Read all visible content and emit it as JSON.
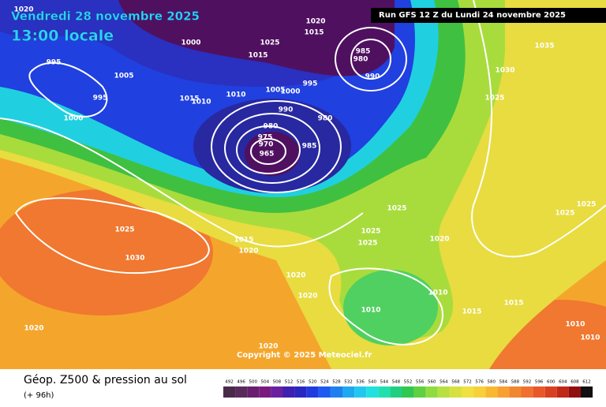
{
  "header": {
    "date": "Vendredi 28 novembre 2025",
    "time": "13:00 locale",
    "run": "Run GFS 12 Z du Lundi 24 novembre 2025"
  },
  "copyright": "Copyright © 2025 Meteociel.fr",
  "footer": {
    "title": "Géop. Z500 & pression au sol",
    "lead": "(+ 96h)"
  },
  "scale": {
    "values": [
      492,
      496,
      500,
      504,
      508,
      512,
      516,
      520,
      524,
      528,
      532,
      536,
      540,
      544,
      548,
      552,
      556,
      560,
      564,
      568,
      572,
      576,
      580,
      584,
      588,
      592,
      596,
      600,
      604,
      608,
      612
    ],
    "colors": [
      "#4a2a4a",
      "#5a2a5a",
      "#6a1e6e",
      "#7a1a80",
      "#6a20a0",
      "#4020b0",
      "#2828c0",
      "#1e3ce0",
      "#1e5af0",
      "#1e80f0",
      "#1ea8f0",
      "#20c8f0",
      "#20e0e0",
      "#20e0b0",
      "#20d080",
      "#30c850",
      "#60d040",
      "#90dc40",
      "#b8e040",
      "#d8e040",
      "#f0e040",
      "#f8d038",
      "#f8b830",
      "#f8a030",
      "#f08830",
      "#f07030",
      "#e85828",
      "#d84020",
      "#c02818",
      "#901010",
      "#101010"
    ]
  },
  "isobars": {
    "labels": [
      1020,
      1000,
      1025,
      1015,
      1020,
      1015,
      985,
      980,
      990,
      1035,
      1030,
      1025,
      995,
      1005,
      995,
      1000,
      1015,
      1010,
      1010,
      1005,
      1000,
      995,
      990,
      980,
      980,
      975,
      970,
      965,
      985,
      1025,
      1025,
      1025,
      1025,
      1015,
      1020,
      1025,
      1025,
      1020,
      1030,
      1020,
      1020,
      1010,
      1015,
      1015,
      1010,
      1020,
      1010,
      1010,
      1020
    ]
  }
}
